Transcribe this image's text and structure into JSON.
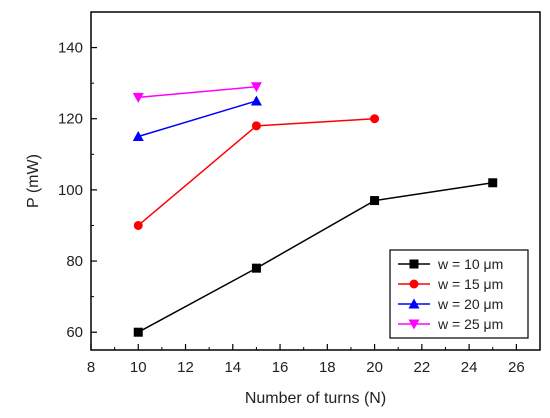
{
  "chart_data": {
    "type": "line",
    "xlabel": "Number of turns (N)",
    "ylabel": "P (mW)",
    "xlim": [
      8,
      27
    ],
    "ylim": [
      55,
      150
    ],
    "xticks": [
      8,
      10,
      12,
      14,
      16,
      18,
      20,
      22,
      24,
      26
    ],
    "yticks": [
      60,
      80,
      100,
      120,
      140
    ],
    "grid": false,
    "legend_position": "bottom-right",
    "series": [
      {
        "name": "w = 10 μm",
        "color": "#000000",
        "marker": "square",
        "x": [
          10,
          15,
          20,
          25
        ],
        "y": [
          60,
          78,
          97,
          102
        ]
      },
      {
        "name": "w = 15 μm",
        "color": "#ff0000",
        "marker": "circle",
        "x": [
          10,
          15,
          20
        ],
        "y": [
          90,
          118,
          120
        ]
      },
      {
        "name": "w = 20 μm",
        "color": "#0000ff",
        "marker": "triangle-up",
        "x": [
          10,
          15
        ],
        "y": [
          115,
          125
        ]
      },
      {
        "name": "w = 25 μm",
        "color": "#ff00ff",
        "marker": "triangle-down",
        "x": [
          10,
          15
        ],
        "y": [
          126,
          129
        ]
      }
    ]
  }
}
